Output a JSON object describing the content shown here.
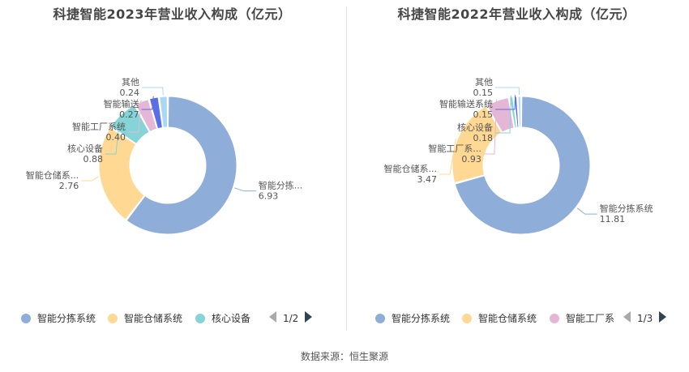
{
  "source_text": "数据来源：恒生聚源",
  "chart_data": [
    {
      "type": "pie",
      "title": "科捷智能2023年营业收入构成（亿元）",
      "labels": [
        "智能分拣系统",
        "智能仓储系统",
        "核心设备",
        "智能工厂系统",
        "智能输送",
        "其他"
      ],
      "label_display": [
        "智能分拣...",
        "智能仓储系...",
        "核心设备",
        "智能工厂系统",
        "智能输送",
        "其他"
      ],
      "values": [
        6.93,
        2.76,
        0.88,
        0.4,
        0.27,
        0.24
      ],
      "value_labels": [
        "6.93",
        "2.76",
        "0.88",
        "0.40",
        "0.27",
        "0.24"
      ],
      "colors": [
        "#8eadd9",
        "#ffd993",
        "#84d4d8",
        "#e5b7d6",
        "#5a6ee6",
        "#a9d7f5"
      ],
      "legend": {
        "items": [
          "智能分拣系统",
          "智能仓储系统",
          "核心设备"
        ],
        "page": "1/2",
        "position": "bottom"
      }
    },
    {
      "type": "pie",
      "title": "科捷智能2022年营业收入构成（亿元）",
      "labels": [
        "智能分拣系统",
        "智能仓储系统",
        "智能工厂系统",
        "核心设备",
        "智能输送系统",
        "其他"
      ],
      "label_display": [
        "智能分拣系统",
        "智能仓储系...",
        "智能工厂系...",
        "核心设备",
        "智能输送系统",
        "其他"
      ],
      "values": [
        11.81,
        3.47,
        0.93,
        0.18,
        0.15,
        0.15
      ],
      "value_labels": [
        "11.81",
        "3.47",
        "0.93",
        "0.18",
        "0.15",
        "0.15"
      ],
      "colors": [
        "#8eadd9",
        "#ffd993",
        "#e5b7d6",
        "#84d4d8",
        "#5a6ee6",
        "#a9d7f5"
      ],
      "legend": {
        "items": [
          "智能分拣系统",
          "智能仓储系统",
          "智能工厂系"
        ],
        "page": "1/3",
        "position": "bottom"
      }
    }
  ]
}
